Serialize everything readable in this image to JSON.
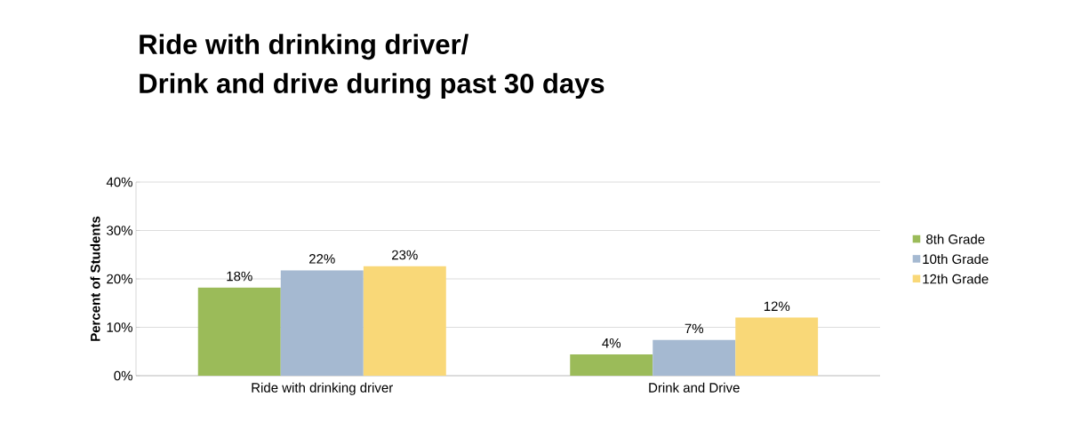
{
  "chart_data": {
    "type": "bar",
    "title": "Ride with drinking driver/\nDrink and drive during past 30 days",
    "ylabel": "Percent of Students",
    "categories": [
      "Ride with drinking driver",
      "Drink and Drive"
    ],
    "series": [
      {
        "name": "8th Grade",
        "color": "#9bbb59",
        "values": [
          18.2,
          4.4
        ],
        "value_labels": [
          "18%",
          "4%"
        ]
      },
      {
        "name": "10th Grade",
        "color": "#a5b9d1",
        "values": [
          21.8,
          7.4
        ],
        "value_labels": [
          "22%",
          "7%"
        ]
      },
      {
        "name": "12th Grade",
        "color": "#f9d878",
        "values": [
          22.6,
          12
        ],
        "value_labels": [
          "23%",
          "12%"
        ]
      }
    ],
    "ylim": [
      0,
      40
    ],
    "yticks": [
      {
        "value": 0,
        "label": "0%"
      },
      {
        "value": 10,
        "label": "10%"
      },
      {
        "value": 20,
        "label": "20%"
      },
      {
        "value": 30,
        "label": "30%"
      },
      {
        "value": 40,
        "label": "40%"
      }
    ],
    "grid": "y",
    "legend": "right"
  }
}
